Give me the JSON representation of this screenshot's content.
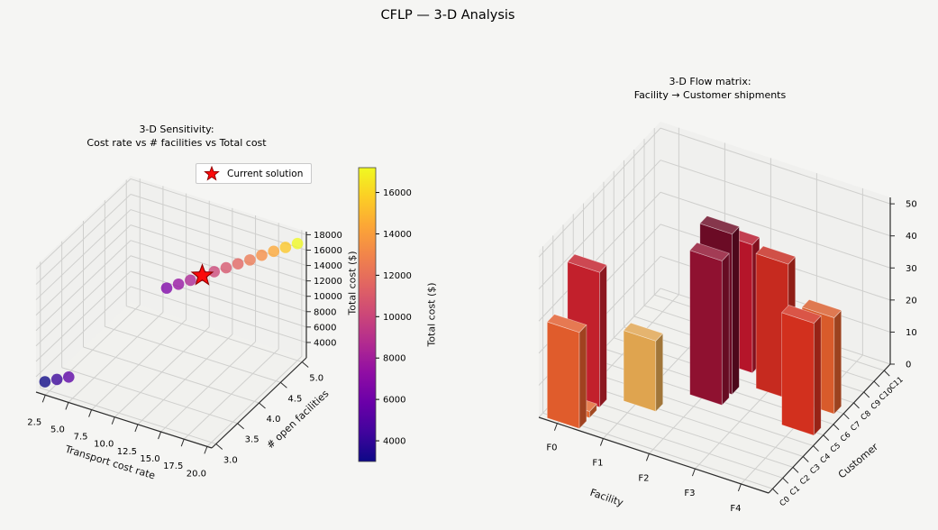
{
  "figure": {
    "title": "CFLP — 3-D Analysis",
    "background": "#f5f5f3"
  },
  "colors": {
    "grid": "#cfcfcd",
    "pane": "#ececea",
    "axis": "#2b2b2b",
    "text": "#000000",
    "star_fill": "#fb0b0b",
    "star_edge": "#8b0000"
  },
  "sensitivity_plot": {
    "title": [
      "3-D Sensitivity:",
      "Cost rate vs # facilities vs Total cost"
    ],
    "xlabel": "Transport cost rate",
    "ylabel": "# open facilities",
    "zlabel": "Total cost ($)",
    "xticks": [
      2.5,
      5.0,
      7.5,
      10.0,
      12.5,
      15.0,
      17.5,
      20.0
    ],
    "yticks": [
      3.0,
      3.5,
      4.0,
      4.5,
      5.0
    ],
    "zticks": [
      4000,
      6000,
      8000,
      10000,
      12000,
      14000,
      16000,
      18000
    ],
    "legend": {
      "label": "Current solution"
    },
    "colorbar": {
      "label": "Total cost ($)",
      "ticks": [
        4000,
        6000,
        8000,
        10000,
        12000,
        14000,
        16000
      ],
      "vmin": 3000,
      "vmax": 17200,
      "gradient": [
        "#0d0887",
        "#41049d",
        "#6a00a8",
        "#8f0da4",
        "#b12a90",
        "#cc4778",
        "#e16462",
        "#f1844b",
        "#fca636",
        "#fcce25",
        "#f0f921"
      ]
    }
  },
  "flow_plot": {
    "title": [
      "3-D Flow matrix:",
      "Facility → Customer shipments"
    ],
    "xlabel": "Facility",
    "ylabel": "Customer",
    "xticks": [
      "F0",
      "F1",
      "F2",
      "F3",
      "F4"
    ],
    "yticks": [
      "C0",
      "C1",
      "C2",
      "C3",
      "C4",
      "C5",
      "C6",
      "C7",
      "C8",
      "C9",
      "C10",
      "C11"
    ],
    "zticks": [
      0,
      10,
      20,
      30,
      40,
      50
    ]
  },
  "chart_data": [
    {
      "type": "scatter3d",
      "title": "3-D Sensitivity: Cost rate vs # facilities vs Total cost",
      "xlabel": "Transport cost rate",
      "ylabel": "# open facilities",
      "zlabel": "Total cost ($)",
      "xlim": [
        1.5,
        20.5
      ],
      "ylim": [
        2.9,
        5.1
      ],
      "zlim": [
        2000,
        18400
      ],
      "colormap": "plasma",
      "points": [
        {
          "x": 2.0,
          "y": 3,
          "z": 3000,
          "color": "#0d0887"
        },
        {
          "x": 3.29,
          "y": 3,
          "z": 3800,
          "color": "#3a049a"
        },
        {
          "x": 4.57,
          "y": 3,
          "z": 4600,
          "color": "#5b01a5"
        },
        {
          "x": 5.86,
          "y": 5,
          "z": 6000,
          "color": "#7e03a8"
        },
        {
          "x": 7.14,
          "y": 5,
          "z": 7000,
          "color": "#9511a1"
        },
        {
          "x": 8.43,
          "y": 5,
          "z": 8000,
          "color": "#ab2494"
        },
        {
          "x": 9.71,
          "y": 5,
          "z": 9100,
          "color": "#c13b82"
        },
        {
          "x": 11.0,
          "y": 5,
          "z": 10100,
          "color": "#cc4778"
        },
        {
          "x": 12.29,
          "y": 5,
          "z": 11100,
          "color": "#d6556d"
        },
        {
          "x": 13.57,
          "y": 5,
          "z": 12100,
          "color": "#e16462"
        },
        {
          "x": 14.86,
          "y": 5,
          "z": 13100,
          "color": "#ec7853"
        },
        {
          "x": 16.14,
          "y": 5,
          "z": 14200,
          "color": "#f68d45"
        },
        {
          "x": 17.43,
          "y": 5,
          "z": 15200,
          "color": "#fca636"
        },
        {
          "x": 18.71,
          "y": 5,
          "z": 16200,
          "color": "#fcc726"
        },
        {
          "x": 20.0,
          "y": 5,
          "z": 17200,
          "color": "#f0f921"
        }
      ],
      "current_solution": {
        "x": 9.71,
        "y": 5,
        "z": 9100,
        "marker": "star",
        "label": "Current solution"
      }
    },
    {
      "type": "bar3d",
      "title": "3-D Flow matrix: Facility → Customer shipments",
      "xlabel": "Facility",
      "ylabel": "Customer",
      "x_categories": [
        "F0",
        "F1",
        "F2",
        "F3",
        "F4"
      ],
      "y_categories": [
        "C0",
        "C1",
        "C2",
        "C3",
        "C4",
        "C5",
        "C6",
        "C7",
        "C8",
        "C9",
        "C10",
        "C11"
      ],
      "zlim": [
        0,
        52
      ],
      "bars": [
        {
          "facility": "F0",
          "customer": "C0",
          "value": 30,
          "color": "#e05c2c"
        },
        {
          "facility": "F0",
          "customer": "C1",
          "value": 2,
          "color": "#e2662e"
        },
        {
          "facility": "F0",
          "customer": "C2",
          "value": 42,
          "color": "#c2202c"
        },
        {
          "facility": "F1",
          "customer": "C3",
          "value": 22,
          "color": "#dfa44f"
        },
        {
          "facility": "F2",
          "customer": "C5",
          "value": 45,
          "color": "#8f1130"
        },
        {
          "facility": "F2",
          "customer": "C6",
          "value": 50,
          "color": "#6b0b25"
        },
        {
          "facility": "F2",
          "customer": "C8",
          "value": 40,
          "color": "#b5152a"
        },
        {
          "facility": "F3",
          "customer": "C7",
          "value": 42,
          "color": "#c62a1f"
        },
        {
          "facility": "F4",
          "customer": "C5",
          "value": 35,
          "color": "#d2301e"
        },
        {
          "facility": "F4",
          "customer": "C7",
          "value": 30,
          "color": "#d85b2b"
        }
      ]
    }
  ]
}
